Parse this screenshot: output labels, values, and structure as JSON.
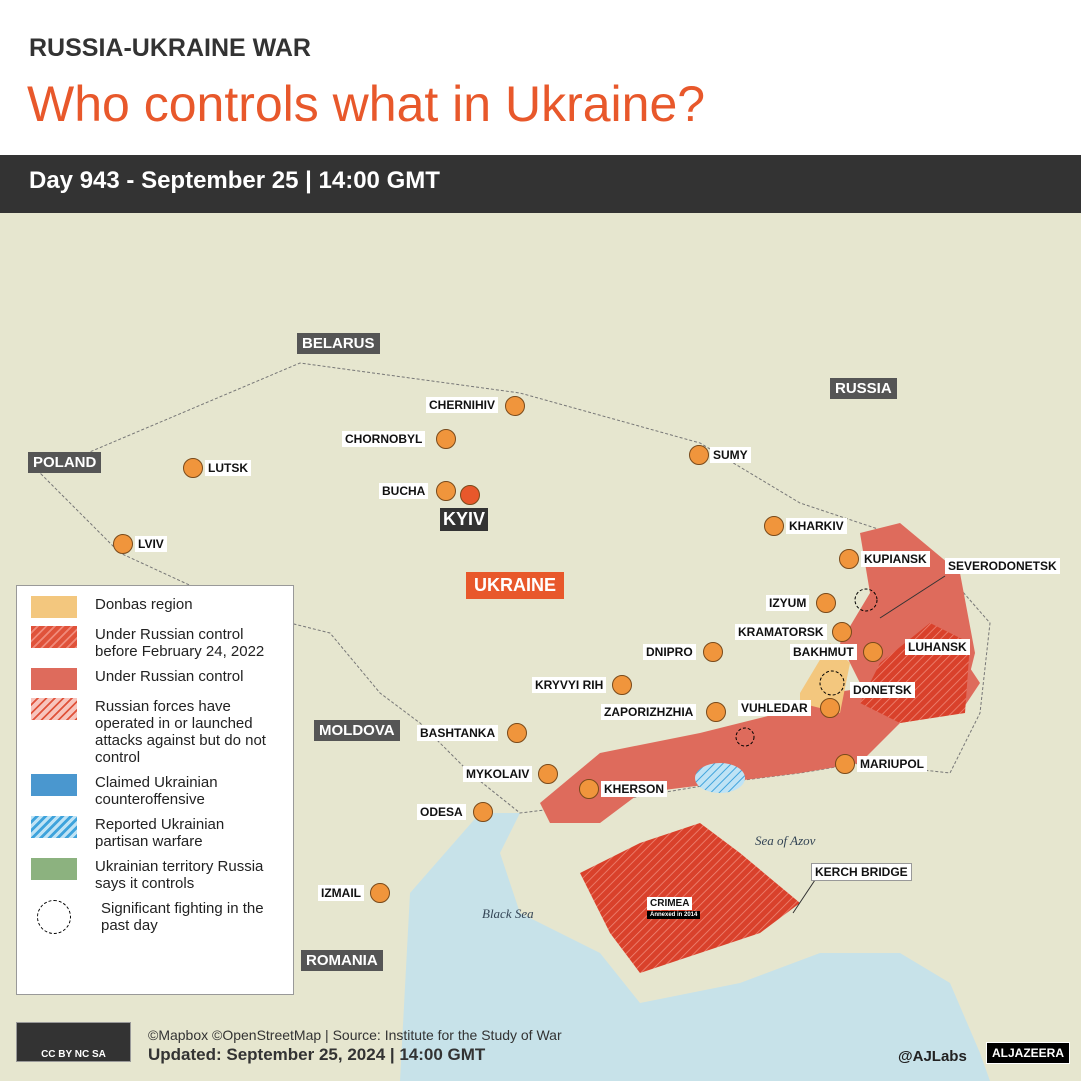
{
  "header": {
    "kicker": "RUSSIA-UKRAINE WAR",
    "title": "Who controls what in Ukraine?",
    "date_bar": "Day 943 - September 25  |  14:00 GMT"
  },
  "countries": {
    "belarus": "BELARUS",
    "russia": "RUSSIA",
    "poland": "POLAND",
    "ukraine": "UKRAINE",
    "moldova": "MOLDOVA",
    "romania": "ROMANIA"
  },
  "cities": {
    "chernihiv": "CHERNIHIV",
    "chornobyl": "CHORNOBYL",
    "bucha": "BUCHA",
    "kyiv": "KYIV",
    "lutsk": "LUTSK",
    "lviv": "LVIV",
    "sumy": "SUMY",
    "kharkiv": "KHARKIV",
    "kupiansk": "KUPIANSK",
    "severodonetsk": "SEVERODONETSK",
    "izyum": "IZYUM",
    "kramatorsk": "KRAMATORSK",
    "bakhmut": "BAKHMUT",
    "luhansk": "LUHANSK",
    "donetsk": "DONETSK",
    "vuhledar": "VUHLEDAR",
    "mariupol": "MARIUPOL",
    "dnipro": "DNIPRO",
    "kryvyi_rih": "KRYVYI RIH",
    "zaporizhzhia": "ZAPORIZHZHIA",
    "bashtanka": "BASHTANKA",
    "mykolaiv": "MYKOLAIV",
    "kherson": "KHERSON",
    "odesa": "ODESA",
    "izmail": "IZMAIL"
  },
  "features": {
    "crimea": "CRIMEA",
    "crimea_note": "Annexed in 2014",
    "kerch": "KERCH BRIDGE",
    "azov": "Sea of Azov",
    "black_sea": "Black Sea"
  },
  "legend": [
    {
      "label": "Donbas region",
      "color": "#f3c77e"
    },
    {
      "label": "Under Russian control before February 24, 2022",
      "color": "#e0523a"
    },
    {
      "label": "Under Russian control",
      "color": "#de6b5c"
    },
    {
      "label": "Russian forces have operated in or launched attacks against but do not control",
      "color": "#f0a49a"
    },
    {
      "label": "Claimed Ukrainian counteroffensive",
      "color": "#4a97cf"
    },
    {
      "label": "Reported Ukrainian partisan warfare",
      "color": "#5ab3e2"
    },
    {
      "label": "Ukrainian territory Russia says it controls",
      "color": "#8cb27f"
    },
    {
      "label": "Significant fighting in the past day",
      "color": "#000000"
    }
  ],
  "footer": {
    "credits": "©Mapbox ©OpenStreetMap | Source: Institute for the Study of War",
    "updated": "Updated: September 25, 2024  |  14:00 GMT",
    "handle": "@AJLabs",
    "logo": "ALJAZEERA",
    "license": "CC BY NC SA"
  }
}
